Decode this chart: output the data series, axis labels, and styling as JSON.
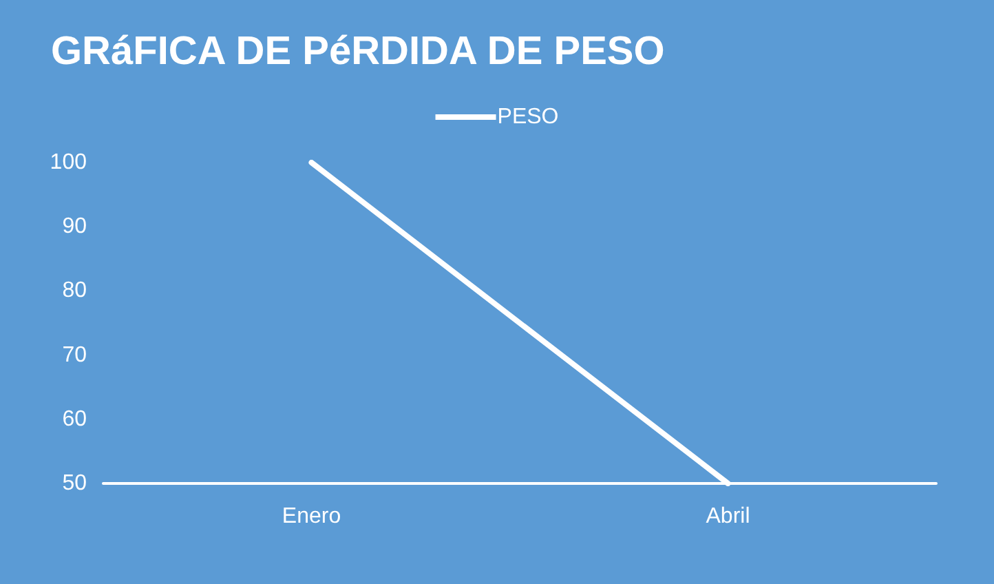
{
  "chart_data": {
    "type": "line",
    "title": "GRáFICA DE PéRDIDA DE PESO",
    "categories": [
      "Enero",
      "Abril"
    ],
    "series": [
      {
        "name": "PESO",
        "color": "#ffffff",
        "values": [
          100,
          50
        ]
      }
    ],
    "ylim": [
      50,
      100
    ],
    "yticks": [
      50,
      60,
      70,
      80,
      90,
      100
    ],
    "grid": false,
    "legend": "top",
    "marker": "none",
    "line_style": "solid"
  }
}
